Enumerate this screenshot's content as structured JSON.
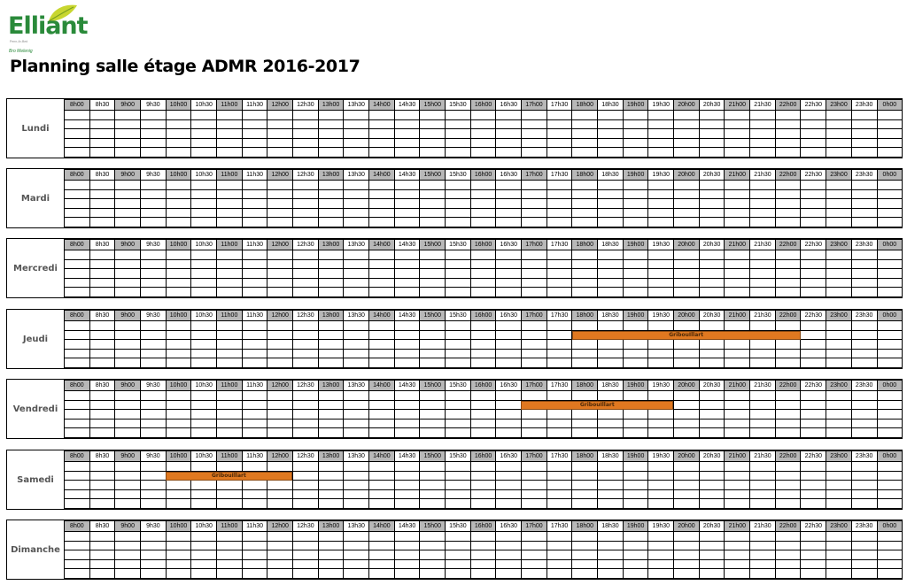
{
  "logo": {
    "name": "Elliant",
    "tagline": "Penn-Ar-Bed",
    "subtitle": "Bro Melenig"
  },
  "page_title": "Planning salle étage ADMR 2016-2017",
  "time_slots": [
    "8h00",
    "8h30",
    "9h00",
    "9h30",
    "10h00",
    "10h30",
    "11h00",
    "11h30",
    "12h00",
    "12h30",
    "13h00",
    "13h30",
    "14h00",
    "14h30",
    "15h00",
    "15h30",
    "16h00",
    "16h30",
    "17h00",
    "17h30",
    "18h00",
    "18h30",
    "19h00",
    "19h30",
    "20h00",
    "20h30",
    "21h00",
    "21h30",
    "22h00",
    "22h30",
    "23h00",
    "23h30",
    "0h00"
  ],
  "days": [
    {
      "name": "Lundi",
      "bookings": []
    },
    {
      "name": "Mardi",
      "bookings": []
    },
    {
      "name": "Mercredi",
      "bookings": []
    },
    {
      "name": "Jeudi",
      "bookings": [
        {
          "label": "GribouIllart",
          "start": "18h00",
          "end": "22h30",
          "row": 2
        }
      ]
    },
    {
      "name": "Vendredi",
      "bookings": [
        {
          "label": "GribouIllart",
          "start": "17h00",
          "end": "20h00",
          "row": 2
        }
      ]
    },
    {
      "name": "Samedi",
      "bookings": [
        {
          "label": "GribouIllart",
          "start": "10h00",
          "end": "12h30",
          "row": 2
        }
      ]
    },
    {
      "name": "Dimanche",
      "bookings": []
    }
  ],
  "colors": {
    "header_shade": "#b8b8b8",
    "booking_fill": "#e07820",
    "logo_green": "#2a8a3a",
    "leaf_yellow": "#c8d630"
  }
}
